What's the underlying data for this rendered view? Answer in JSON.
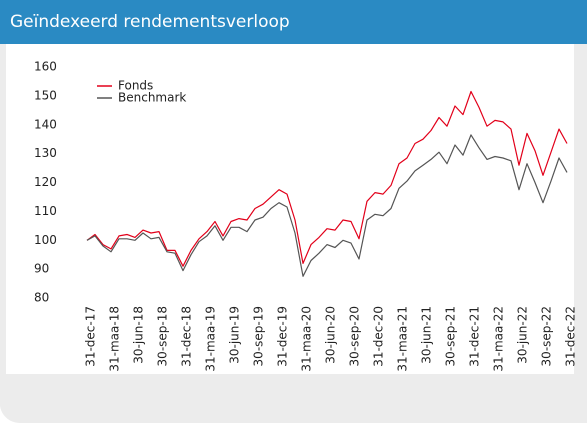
{
  "chart_data": {
    "type": "line",
    "title": "Geïndexeerd rendementsverloop",
    "categories": [
      "31-dec-17",
      null,
      null,
      "31-maa-18",
      null,
      null,
      "30-jun-18",
      null,
      null,
      "30-sep-18",
      null,
      null,
      "31-dec-18",
      null,
      null,
      "31-maa-19",
      null,
      null,
      "30-jun-19",
      null,
      null,
      "30-sep-19",
      null,
      null,
      "31-dec-19",
      null,
      null,
      "31-maa-20",
      null,
      null,
      "30-jun-20",
      null,
      null,
      "30-sep-20",
      null,
      null,
      "31-dec-20",
      null,
      null,
      "31-maa-21",
      null,
      null,
      "30-jun-21",
      null,
      null,
      "30-sep-21",
      null,
      null,
      "31-dec-21",
      null,
      null,
      "31-maa-22",
      null,
      null,
      "30-jun-22",
      null,
      null,
      "30-sep-22",
      null,
      null,
      "31-dec-22"
    ],
    "series": [
      {
        "name": "Fonds",
        "color": "#e2001a",
        "values": [
          100,
          102,
          98.5,
          97,
          101.5,
          102,
          101,
          103.5,
          102.5,
          103,
          96.5,
          96.5,
          91,
          96.5,
          100.5,
          103,
          106.5,
          101.5,
          106.5,
          107.5,
          107,
          111,
          112.5,
          115,
          117.5,
          116,
          107,
          92,
          98.5,
          101,
          104,
          103.5,
          107,
          106.5,
          100.5,
          113.5,
          116.5,
          116,
          119,
          126.5,
          128.5,
          133.5,
          135,
          138,
          142.5,
          139.5,
          146.5,
          143.5,
          151.5,
          146,
          139.5,
          141.5,
          141,
          138.5,
          126,
          137,
          131,
          122.5,
          130.5,
          138.5,
          133.5
        ]
      },
      {
        "name": "Benchmark",
        "color": "#555555",
        "values": [
          100,
          101.5,
          98,
          96,
          100.5,
          100.5,
          100,
          102.5,
          100.5,
          101,
          96,
          95.5,
          89.5,
          95,
          99.5,
          101.5,
          105,
          100,
          104.5,
          104.5,
          103,
          107,
          108,
          111,
          113,
          111.5,
          102.5,
          87.5,
          93,
          95.5,
          98.5,
          97.5,
          100,
          99,
          93.5,
          107,
          109,
          108.5,
          111,
          118,
          120.5,
          124,
          126,
          128,
          130.5,
          126.5,
          133,
          129.5,
          136.5,
          132,
          128,
          129,
          128.5,
          127.5,
          117.5,
          126.5,
          120,
          113,
          120.5,
          128.5,
          123.5
        ]
      }
    ],
    "ylim": [
      80,
      160
    ],
    "yticks": [
      80,
      90,
      100,
      110,
      120,
      130,
      140,
      150,
      160
    ],
    "grid": false,
    "legend": "top-left"
  }
}
